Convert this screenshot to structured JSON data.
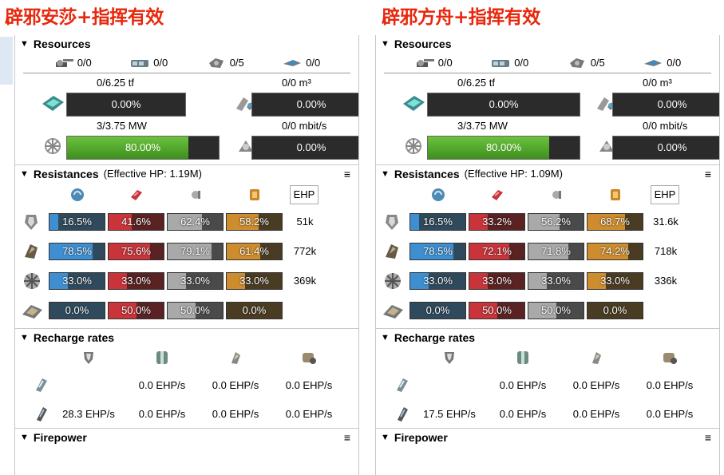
{
  "titles": {
    "left": "辟邪安莎+指挥有效",
    "right": "辟邪方舟+指挥有效"
  },
  "sections": {
    "resources": "Resources",
    "resistances": "Resistances",
    "recharge": "Recharge rates",
    "firepower": "Firepower",
    "menu_glyph": "≡",
    "ehp_button": "EHP"
  },
  "panels": [
    {
      "resources": {
        "turrets": "0/0",
        "launchers": "0/0",
        "drones": "0/5",
        "fighters": "0/0"
      },
      "cpu": {
        "label": "0/6.25 tf",
        "pct": "0.00%",
        "fill": 0
      },
      "calibration": {
        "label": "0/0 m³",
        "pct": "0.00%",
        "fill": 0
      },
      "power": {
        "label": "3/3.75 MW",
        "pct": "80.00%",
        "fill": 0.8
      },
      "bandwidth": {
        "label": "0/0 mbit/s",
        "pct": "0.00%",
        "fill": 0
      },
      "effective_hp": "(Effective HP: 1.19M)",
      "layers": [
        {
          "name": "shield",
          "em": "16.5%",
          "th": "41.6%",
          "ki": "62.4%",
          "ex": "58.2%",
          "vals": [
            0.165,
            0.416,
            0.624,
            0.582
          ],
          "ehp": "51k"
        },
        {
          "name": "armor",
          "em": "78.5%",
          "th": "75.6%",
          "ki": "79.1%",
          "ex": "61.4%",
          "vals": [
            0.785,
            0.756,
            0.791,
            0.614
          ],
          "ehp": "772k"
        },
        {
          "name": "hull",
          "em": "33.0%",
          "th": "33.0%",
          "ki": "33.0%",
          "ex": "33.0%",
          "vals": [
            0.33,
            0.33,
            0.33,
            0.33
          ],
          "ehp": "369k"
        },
        {
          "name": "damage-pattern",
          "em": "0.0%",
          "th": "50.0%",
          "ki": "50.0%",
          "ex": "0.0%",
          "vals": [
            0,
            0.5,
            0.5,
            0
          ],
          "ehp": ""
        }
      ],
      "recharge": {
        "passive": [
          "",
          "0.0 EHP/s",
          "0.0 EHP/s",
          "0.0 EHP/s"
        ],
        "sustained": [
          "28.3 EHP/s",
          "0.0 EHP/s",
          "0.0 EHP/s",
          "0.0 EHP/s"
        ]
      }
    },
    {
      "resources": {
        "turrets": "0/0",
        "launchers": "0/0",
        "drones": "0/5",
        "fighters": "0/0"
      },
      "cpu": {
        "label": "0/6.25 tf",
        "pct": "0.00%",
        "fill": 0
      },
      "calibration": {
        "label": "0/0 m³",
        "pct": "0.00%",
        "fill": 0
      },
      "power": {
        "label": "3/3.75 MW",
        "pct": "80.00%",
        "fill": 0.8
      },
      "bandwidth": {
        "label": "0/0 mbit/s",
        "pct": "0.00%",
        "fill": 0
      },
      "effective_hp": "(Effective HP: 1.09M)",
      "layers": [
        {
          "name": "shield",
          "em": "16.5%",
          "th": "33.2%",
          "ki": "56.2%",
          "ex": "68.7%",
          "vals": [
            0.165,
            0.332,
            0.562,
            0.687
          ],
          "ehp": "31.6k"
        },
        {
          "name": "armor",
          "em": "78.5%",
          "th": "72.1%",
          "ki": "71.8%",
          "ex": "74.2%",
          "vals": [
            0.785,
            0.721,
            0.718,
            0.742
          ],
          "ehp": "718k"
        },
        {
          "name": "hull",
          "em": "33.0%",
          "th": "33.0%",
          "ki": "33.0%",
          "ex": "33.0%",
          "vals": [
            0.33,
            0.33,
            0.33,
            0.33
          ],
          "ehp": "336k"
        },
        {
          "name": "damage-pattern",
          "em": "0.0%",
          "th": "50.0%",
          "ki": "50.0%",
          "ex": "0.0%",
          "vals": [
            0,
            0.5,
            0.5,
            0
          ],
          "ehp": ""
        }
      ],
      "recharge": {
        "passive": [
          "",
          "0.0 EHP/s",
          "0.0 EHP/s",
          "0.0 EHP/s"
        ],
        "sustained": [
          "17.5 EHP/s",
          "0.0 EHP/s",
          "0.0 EHP/s",
          "0.0 EHP/s"
        ]
      }
    }
  ]
}
